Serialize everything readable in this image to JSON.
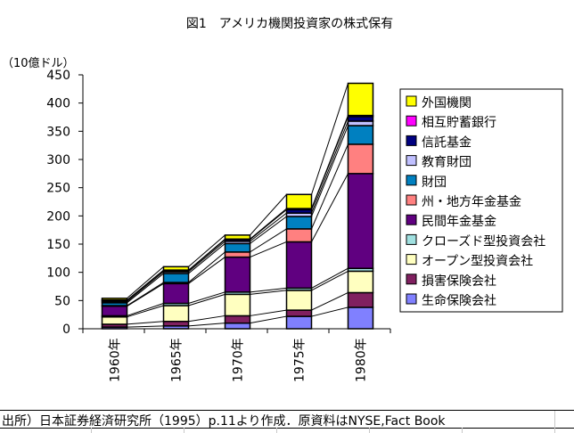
{
  "chart_data": {
    "type": "bar",
    "stacked": true,
    "title": "図1　アメリカ機関投資家の株式保有",
    "ylabel": "（10億ドル）",
    "xlabel": "",
    "ylim": [
      0,
      450
    ],
    "yticks": [
      0,
      50,
      100,
      150,
      200,
      250,
      300,
      350,
      400,
      450
    ],
    "grid": false,
    "legend_position": "right",
    "series_lines": true,
    "categories": [
      "1960年",
      "1965年",
      "1970年",
      "1975年",
      "1980年"
    ],
    "series": [
      {
        "name": "生命保険会社",
        "color": "#8080FF",
        "values": [
          3,
          5,
          10,
          22,
          38
        ]
      },
      {
        "name": "損害保険会社",
        "color": "#802060",
        "values": [
          5,
          8,
          13,
          11,
          26
        ]
      },
      {
        "name": "オープン型投資会社",
        "color": "#FFFFC0",
        "values": [
          13,
          28,
          38,
          35,
          38
        ]
      },
      {
        "name": "クローズド型投資会社",
        "color": "#A0E0E0",
        "values": [
          2,
          4,
          4,
          4,
          5
        ]
      },
      {
        "name": "民間年金基金",
        "color": "#600080",
        "values": [
          17,
          35,
          62,
          82,
          168
        ]
      },
      {
        "name": "州・地方年金基金",
        "color": "#FF8080",
        "values": [
          1,
          2,
          9,
          23,
          52
        ]
      },
      {
        "name": "財団",
        "color": "#0080C0",
        "values": [
          5,
          16,
          15,
          22,
          33
        ]
      },
      {
        "name": "教育財団",
        "color": "#C0C0FF",
        "values": [
          2,
          3,
          4,
          6,
          8
        ]
      },
      {
        "name": "信託基金",
        "color": "#000080",
        "values": [
          2,
          2,
          3,
          6,
          8
        ]
      },
      {
        "name": "相互貯蓄銀行",
        "color": "#FF00FF",
        "values": [
          1,
          1,
          1,
          2,
          2
        ]
      },
      {
        "name": "外国機関",
        "color": "#FFFF00",
        "values": [
          3,
          6,
          7,
          25,
          57
        ]
      }
    ]
  },
  "legend_order": [
    10,
    9,
    8,
    7,
    6,
    5,
    4,
    3,
    2,
    1,
    0
  ],
  "footer": {
    "source": "出所）日本証券経済研究所（1995）p.11より作成．原資料はNYSE,Fact Book"
  }
}
